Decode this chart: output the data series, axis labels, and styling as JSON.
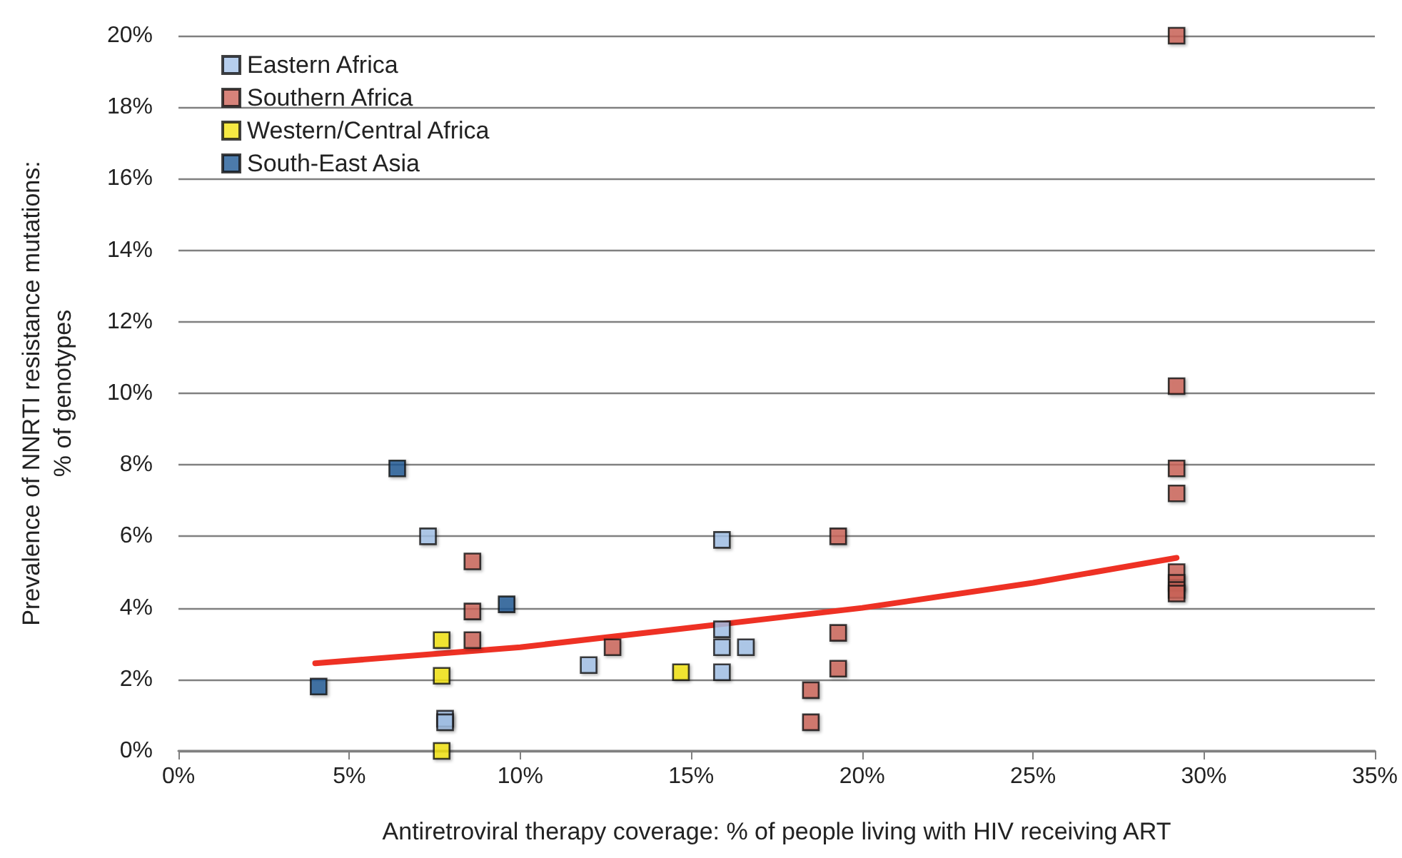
{
  "chart_data": {
    "type": "scatter",
    "xlabel": "Antiretroviral therapy coverage: % of people living with HIV receiving ART",
    "ylabel": "Prevalence of NNRTI resistance mutations:\n% of genotypes",
    "xlim": [
      0,
      35
    ],
    "ylim": [
      0,
      20
    ],
    "xticks": [
      {
        "value": 0,
        "label": "0%"
      },
      {
        "value": 5,
        "label": "5%"
      },
      {
        "value": 10,
        "label": "10%"
      },
      {
        "value": 15,
        "label": "15%"
      },
      {
        "value": 20,
        "label": "20%"
      },
      {
        "value": 25,
        "label": "25%"
      },
      {
        "value": 30,
        "label": "30%"
      },
      {
        "value": 35,
        "label": "35%"
      }
    ],
    "yticks": [
      {
        "value": 0,
        "label": "0%"
      },
      {
        "value": 2,
        "label": "2%"
      },
      {
        "value": 4,
        "label": "4%"
      },
      {
        "value": 6,
        "label": "6%"
      },
      {
        "value": 8,
        "label": "8%"
      },
      {
        "value": 10,
        "label": "10%"
      },
      {
        "value": 12,
        "label": "12%"
      },
      {
        "value": 14,
        "label": "14%"
      },
      {
        "value": 16,
        "label": "16%"
      },
      {
        "value": 18,
        "label": "18%"
      },
      {
        "value": 20,
        "label": "20%"
      }
    ],
    "grid": "y",
    "legend": "top left",
    "marker": "square",
    "series": [
      {
        "name": "Eastern Africa",
        "color": "#a4c2e8",
        "x": [
          7.3,
          7.8,
          7.8,
          12.0,
          15.9,
          15.9,
          15.9,
          15.9,
          16.6
        ],
        "values": [
          6.0,
          0.9,
          0.8,
          2.4,
          5.9,
          3.4,
          2.9,
          2.2,
          2.9
        ]
      },
      {
        "name": "Southern Africa",
        "color": "#cd6459",
        "x": [
          8.6,
          8.6,
          8.6,
          12.7,
          18.5,
          18.5,
          19.3,
          19.3,
          19.3,
          29.2,
          29.2,
          29.2,
          29.2,
          29.2,
          29.2,
          29.2,
          29.2
        ],
        "values": [
          5.3,
          3.9,
          3.1,
          2.9,
          1.7,
          0.8,
          6.0,
          3.3,
          2.3,
          20.0,
          10.2,
          7.9,
          7.2,
          5.0,
          4.7,
          4.5,
          4.4
        ]
      },
      {
        "name": "Western/Central Africa",
        "color": "#f5e514",
        "x": [
          7.7,
          7.7,
          7.7,
          14.7
        ],
        "values": [
          3.1,
          2.1,
          0.0,
          2.2
        ]
      },
      {
        "name": "South-East Asia",
        "color": "#1f5a96",
        "x": [
          4.1,
          6.4,
          9.6
        ],
        "values": [
          1.8,
          7.9,
          4.1
        ]
      },
      {
        "type": "line",
        "color": "#ee3124",
        "marker": "none",
        "x": [
          4.0,
          10,
          15,
          20,
          25,
          29.2
        ],
        "values": [
          2.45,
          2.9,
          3.45,
          4.0,
          4.7,
          5.4
        ]
      }
    ]
  }
}
